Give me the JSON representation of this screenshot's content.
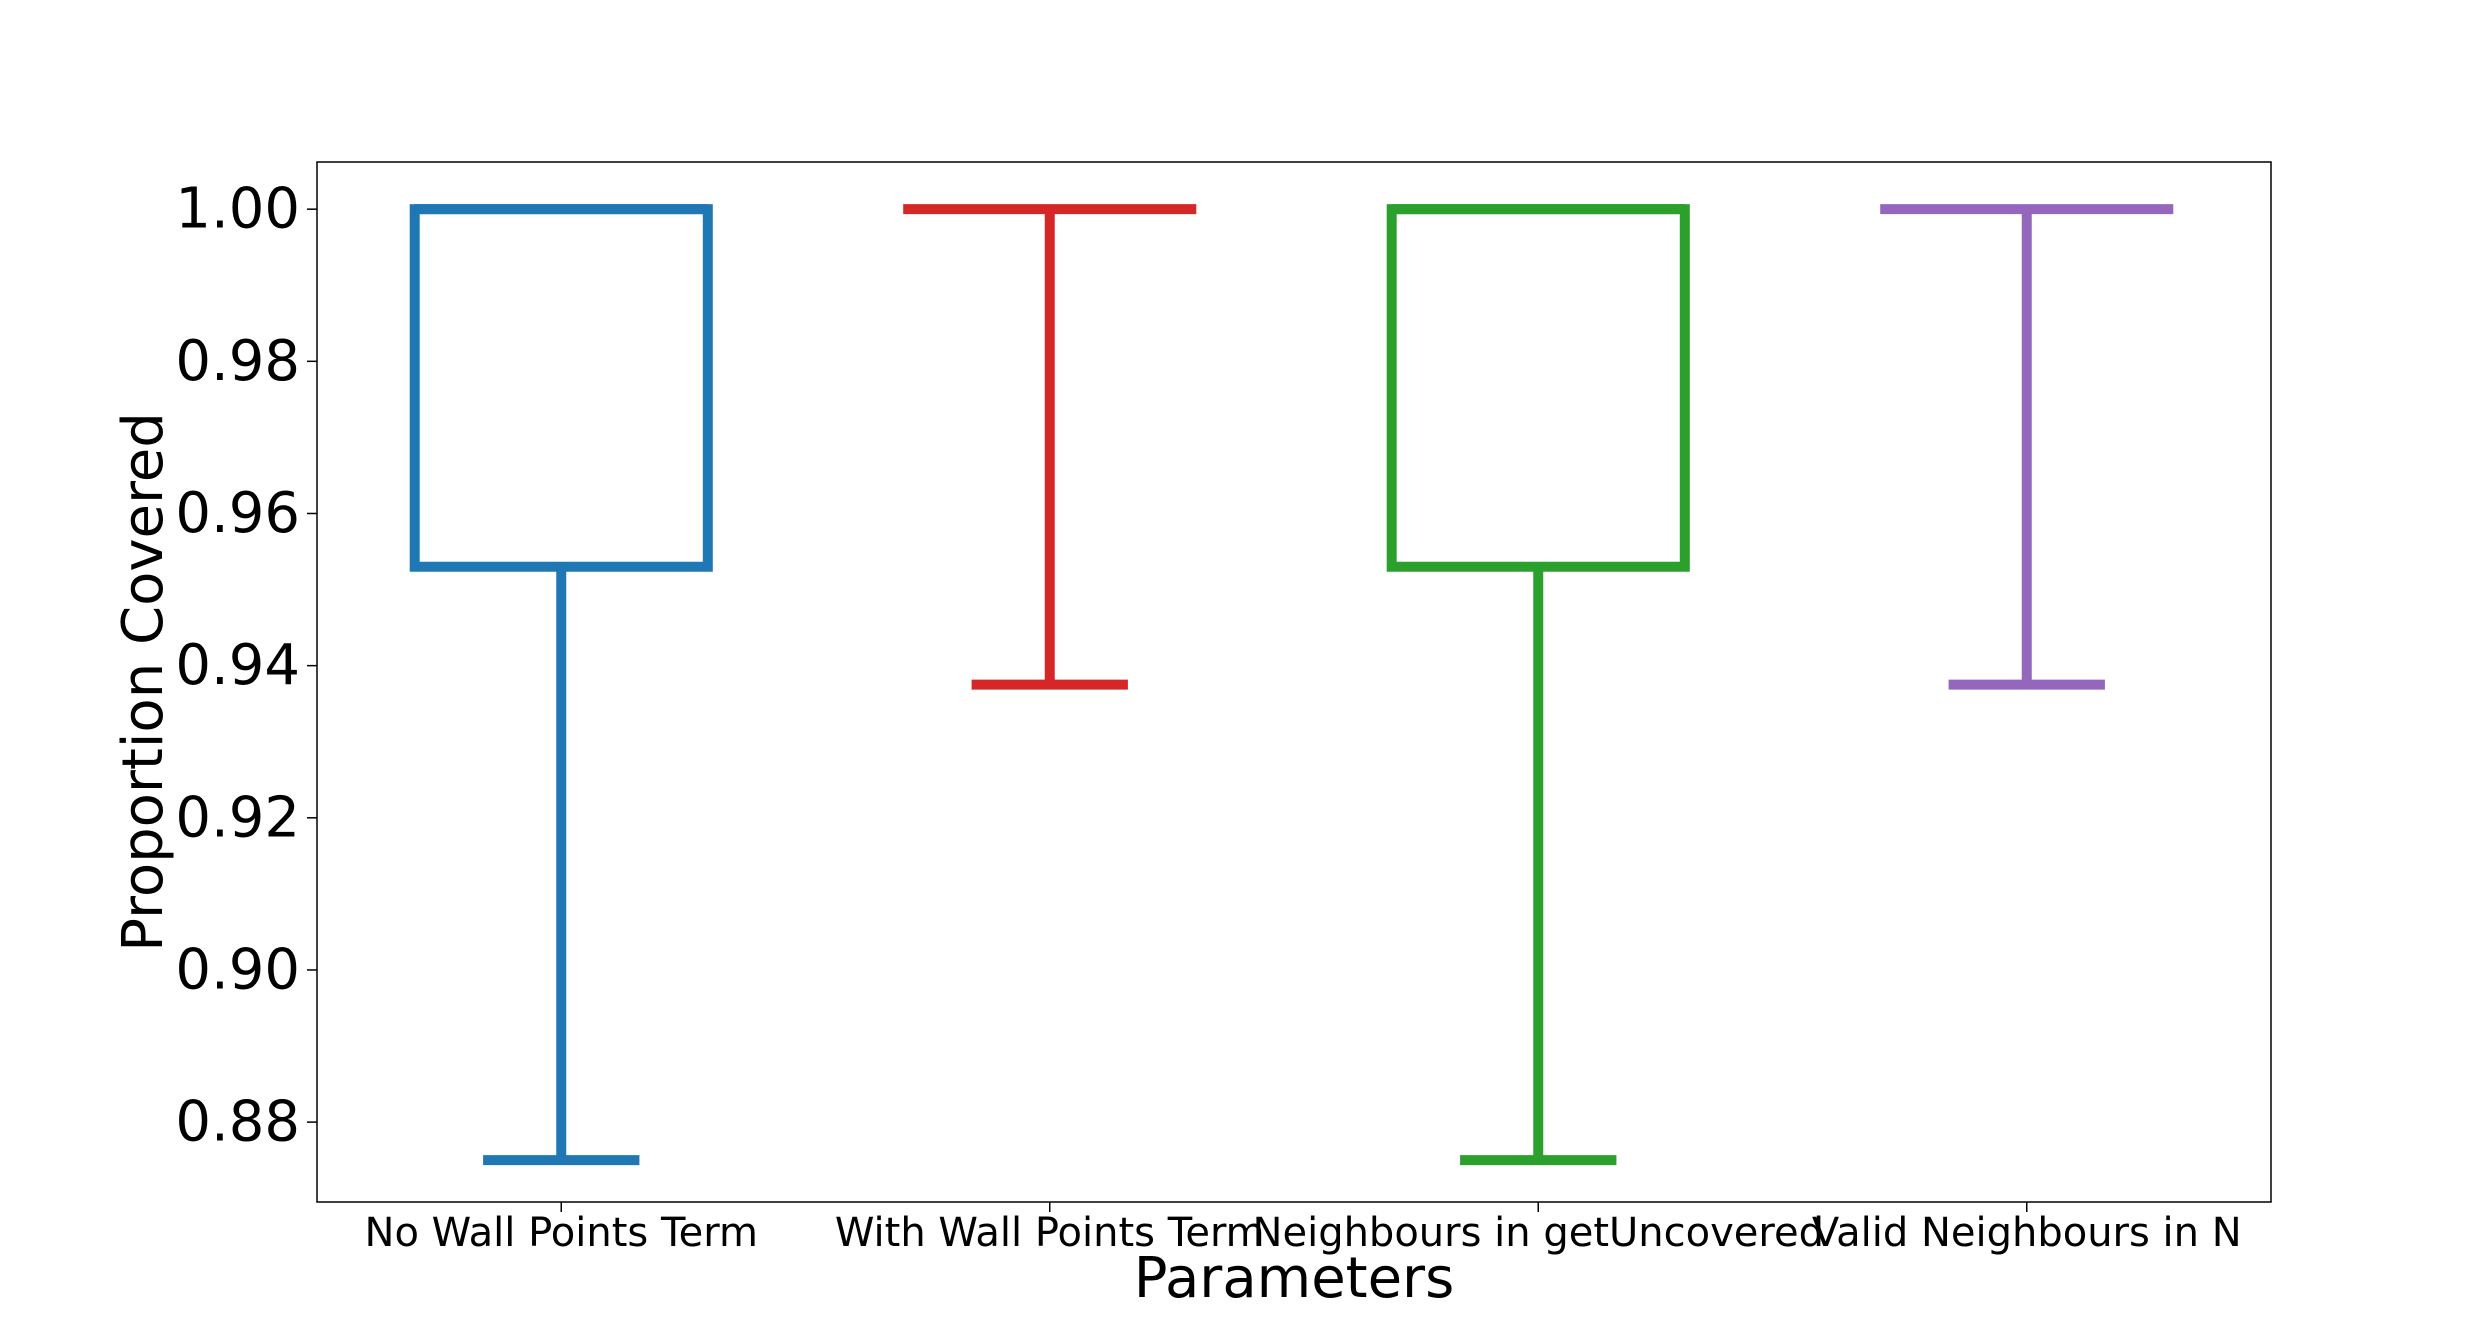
{
  "chart_data": {
    "type": "box",
    "title": "",
    "xlabel": "Parameters",
    "ylabel": "Proportion Covered",
    "ylim": [
      0.8695,
      1.0062
    ],
    "yticks": [
      0.88,
      0.9,
      0.92,
      0.94,
      0.96,
      0.98,
      1.0
    ],
    "ytick_labels": [
      "0.88",
      "0.90",
      "0.92",
      "0.94",
      "0.96",
      "0.98",
      "1.00"
    ],
    "grid": false,
    "legend": "none",
    "categories": [
      "No Wall Points Term",
      "With Wall Points Term",
      "Neighbours in getUncovered",
      "Valid Neighbours in N"
    ],
    "boxes": [
      {
        "category": "No Wall Points Term",
        "whisker_low": 0.875,
        "q1": 0.953,
        "median": 1.0,
        "q3": 1.0,
        "whisker_high": 1.0,
        "color": "#1f77b4"
      },
      {
        "category": "With Wall Points Term",
        "whisker_low": 0.9375,
        "q1": 1.0,
        "median": 1.0,
        "q3": 1.0,
        "whisker_high": 1.0,
        "color": "#d62728"
      },
      {
        "category": "Neighbours in getUncovered",
        "whisker_low": 0.875,
        "q1": 0.953,
        "median": 1.0,
        "q3": 1.0,
        "whisker_high": 1.0,
        "color": "#2ca02c"
      },
      {
        "category": "Valid Neighbours in N",
        "whisker_low": 0.9375,
        "q1": 1.0,
        "median": 1.0,
        "q3": 1.0,
        "whisker_high": 1.0,
        "color": "#9467bd"
      }
    ]
  }
}
